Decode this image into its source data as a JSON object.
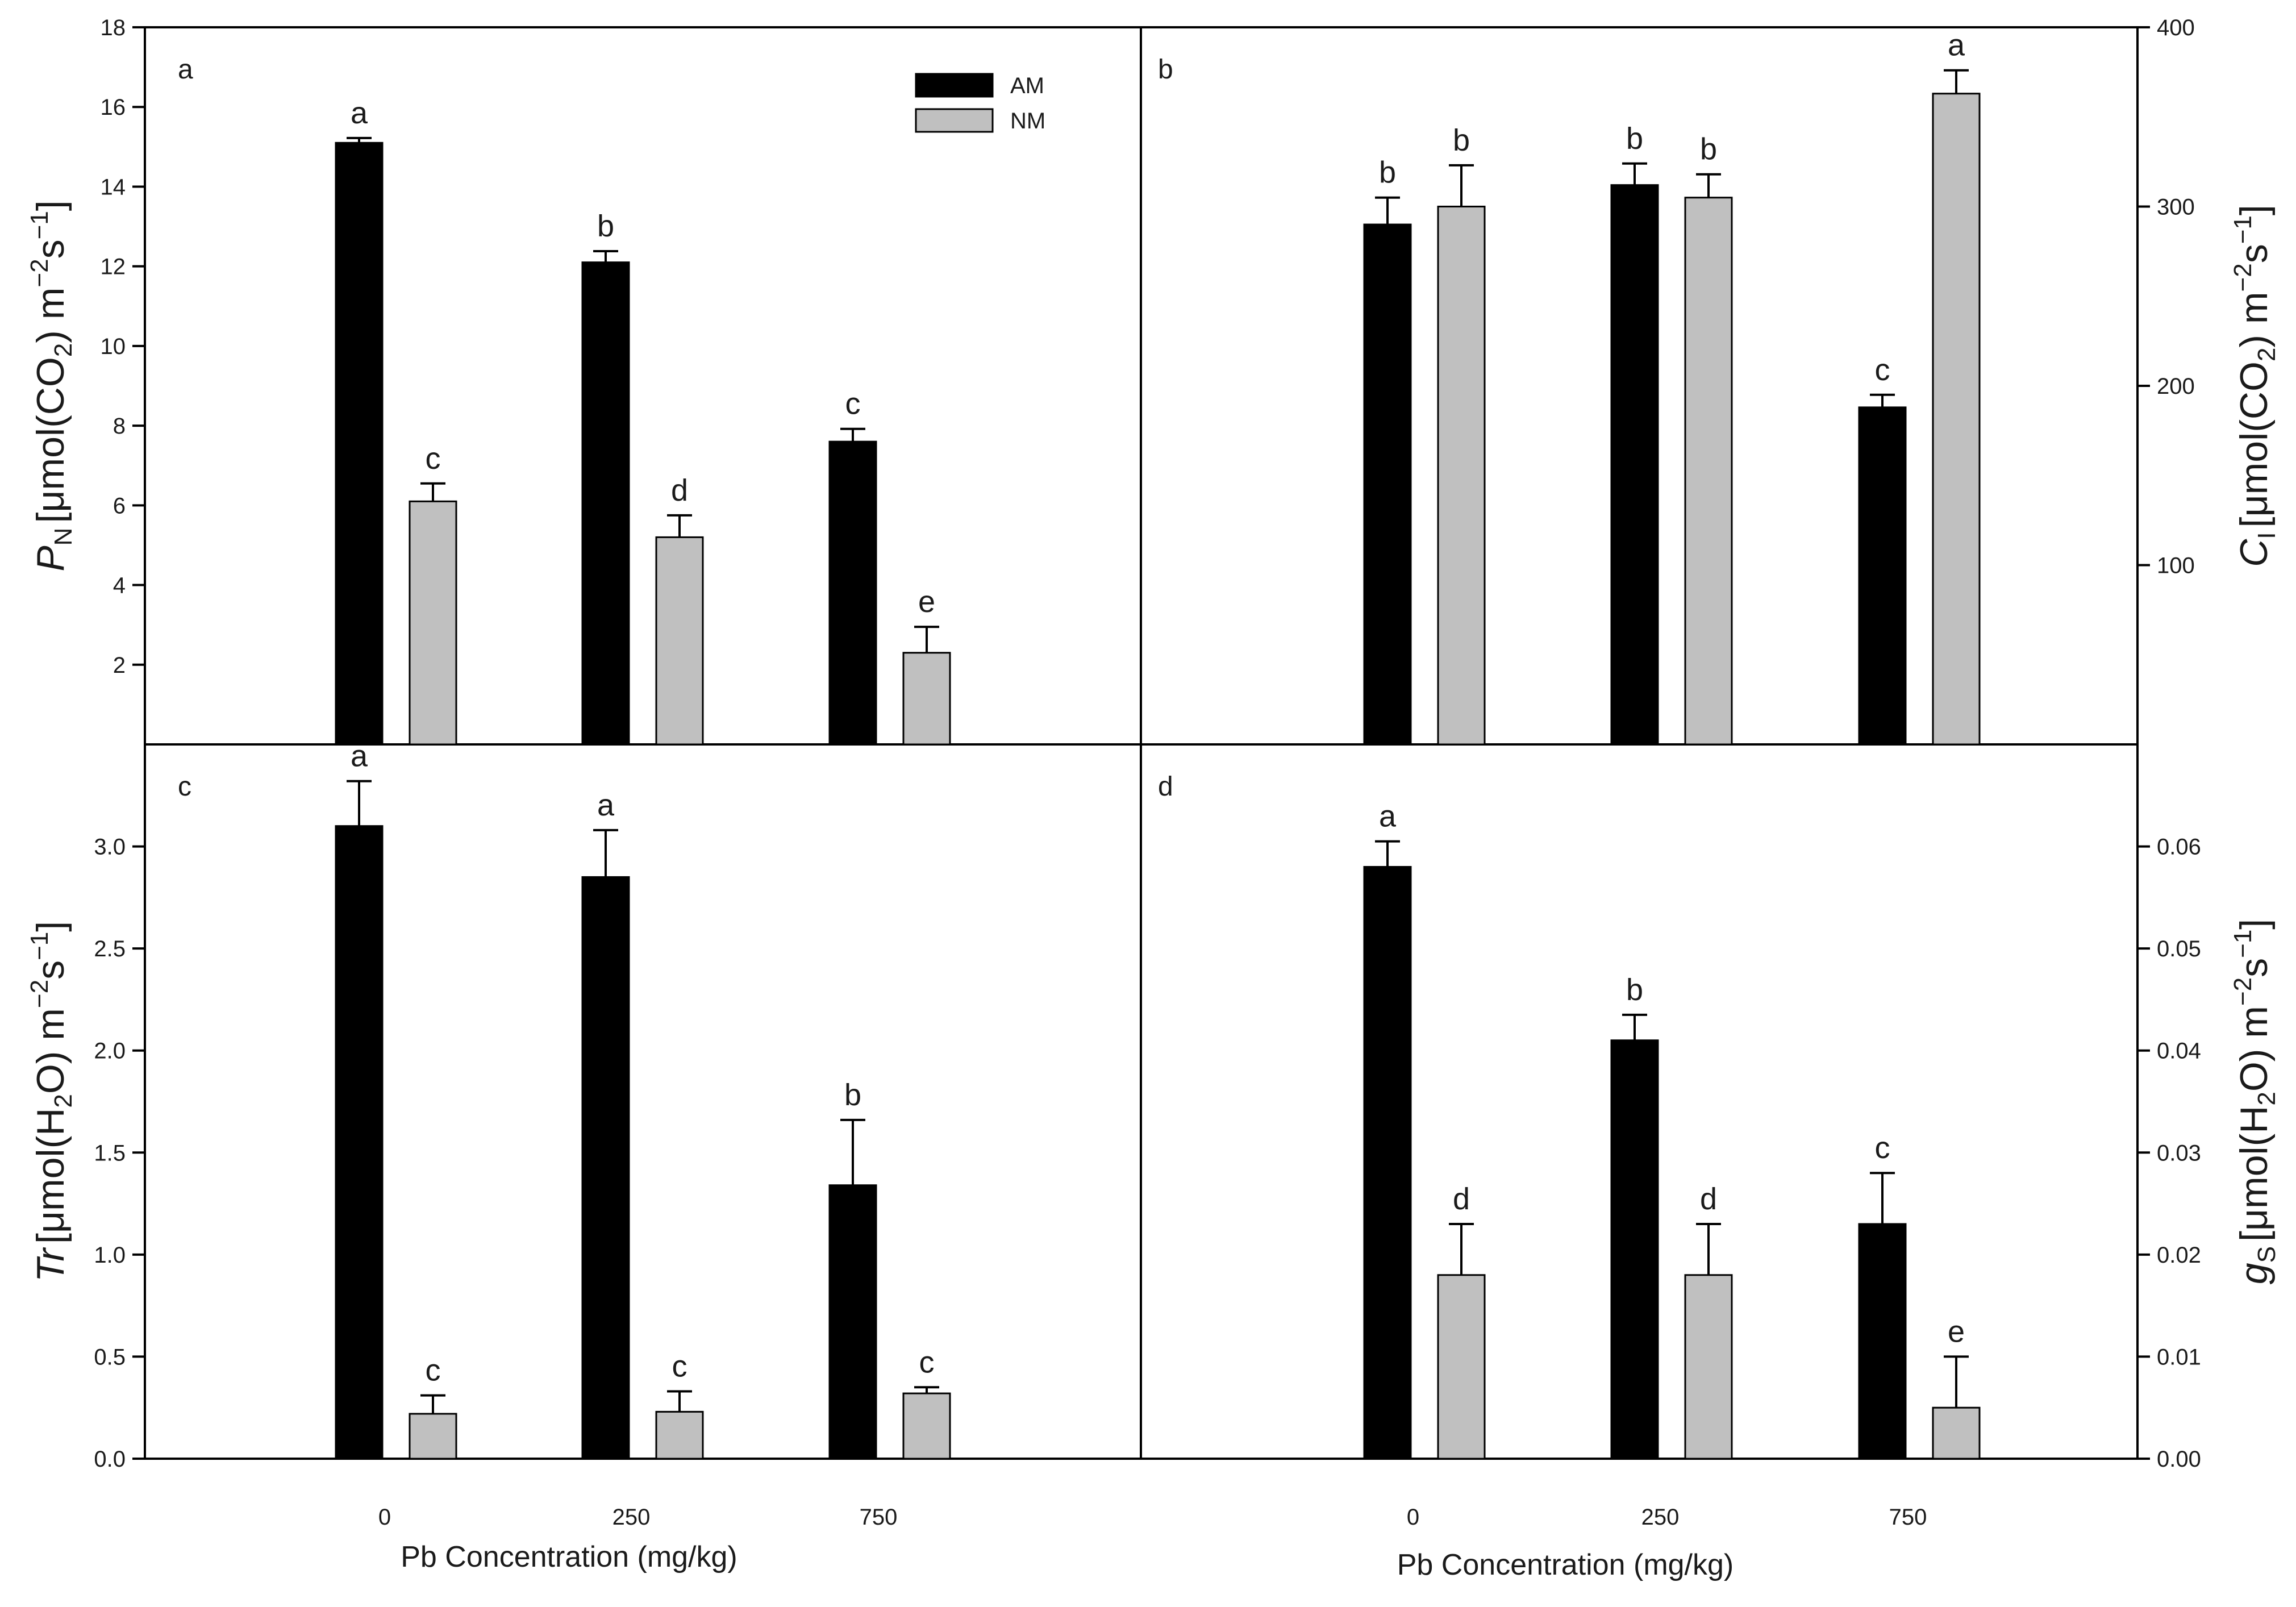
{
  "colors": {
    "am": "#000000",
    "nm": "#c0c0c0",
    "axis": "#000000"
  },
  "chart_data": [
    {
      "panel": "a",
      "type": "bar",
      "categories": [
        "0",
        "250",
        "750"
      ],
      "ylim": [
        0,
        18
      ],
      "yticks": [
        2,
        4,
        6,
        8,
        10,
        12,
        14,
        16,
        18
      ],
      "ytick_labels": [
        "2",
        "4",
        "6",
        "8",
        "10",
        "12",
        "14",
        "16",
        "18"
      ],
      "y_axis_side": "left",
      "show_x_tick_labels": false,
      "ylabel": {
        "symbol": "P",
        "sub": "N",
        "prefix": "[μmol(CO",
        "prefix_sub": "2",
        "unit": ") m",
        "exp1": "−2",
        "mid": "s",
        "exp2": "−1",
        "close": "]"
      },
      "legend": {
        "position": "top-right",
        "entries": [
          "AM",
          "NM"
        ]
      },
      "series": [
        {
          "name": "AM",
          "values": [
            15.1,
            12.1,
            7.6
          ],
          "errors": [
            0.12,
            0.28,
            0.32
          ],
          "labels": [
            "a",
            "b",
            "c"
          ]
        },
        {
          "name": "NM",
          "values": [
            6.1,
            5.2,
            2.3
          ],
          "errors": [
            0.45,
            0.55,
            0.65
          ],
          "labels": [
            "c",
            "d",
            "e"
          ]
        }
      ]
    },
    {
      "panel": "b",
      "type": "bar",
      "categories": [
        "0",
        "250",
        "750"
      ],
      "ylim": [
        0,
        400
      ],
      "yticks": [
        100,
        200,
        300,
        400
      ],
      "ytick_labels": [
        "100",
        "200",
        "300",
        "400"
      ],
      "y_axis_side": "right",
      "show_x_tick_labels": false,
      "ylabel": {
        "symbol": "C",
        "sub": "I",
        "prefix": "[μmol(CO",
        "prefix_sub": "2",
        "unit": ") m",
        "exp1": "−2",
        "mid": "s",
        "exp2": "−1",
        "close": "]"
      },
      "series": [
        {
          "name": "AM",
          "values": [
            290,
            312,
            188
          ],
          "errors": [
            15,
            12,
            7
          ],
          "labels": [
            "b",
            "b",
            "c"
          ]
        },
        {
          "name": "NM",
          "values": [
            300,
            305,
            363
          ],
          "errors": [
            23,
            13,
            13
          ],
          "labels": [
            "b",
            "b",
            "a"
          ]
        }
      ]
    },
    {
      "panel": "c",
      "type": "bar",
      "categories": [
        "0",
        "250",
        "750"
      ],
      "ylim": [
        0,
        3.5
      ],
      "yticks": [
        0,
        0.5,
        1.0,
        1.5,
        2.0,
        2.5,
        3.0
      ],
      "ytick_labels": [
        "0.0",
        "0.5",
        "1.0",
        "1.5",
        "2.0",
        "2.5",
        "3.0"
      ],
      "y_axis_side": "left",
      "show_x_tick_labels": true,
      "xlabel": "Pb Concentration (mg/kg)",
      "ylabel": {
        "symbol": "Tr",
        "sub": "",
        "prefix": "[μmol(H",
        "prefix_sub": "2",
        "unit": "O) m",
        "exp1": "−2",
        "mid": "s",
        "exp2": "−1",
        "close": "]"
      },
      "series": [
        {
          "name": "AM",
          "values": [
            3.1,
            2.85,
            1.34
          ],
          "errors": [
            0.22,
            0.23,
            0.32
          ],
          "labels": [
            "a",
            "a",
            "b"
          ]
        },
        {
          "name": "NM",
          "values": [
            0.22,
            0.23,
            0.32
          ],
          "errors": [
            0.09,
            0.1,
            0.03
          ],
          "labels": [
            "c",
            "c",
            "c"
          ]
        }
      ]
    },
    {
      "panel": "d",
      "type": "bar",
      "categories": [
        "0",
        "250",
        "750"
      ],
      "ylim": [
        0,
        0.07
      ],
      "yticks": [
        0,
        0.01,
        0.02,
        0.03,
        0.04,
        0.05,
        0.06
      ],
      "ytick_labels": [
        "0.00",
        "0.01",
        "0.02",
        "0.03",
        "0.04",
        "0.05",
        "0.06"
      ],
      "y_axis_side": "right",
      "show_x_tick_labels": true,
      "xlabel": "Pb Concentration (mg/kg)",
      "ylabel": {
        "symbol": "g",
        "sub": "S",
        "prefix": "[μmol(H",
        "prefix_sub": "2",
        "unit": "O) m",
        "exp1": "−2",
        "mid": "s",
        "exp2": "−1",
        "close": "]"
      },
      "series": [
        {
          "name": "AM",
          "values": [
            0.058,
            0.041,
            0.023
          ],
          "errors": [
            0.0025,
            0.0025,
            0.005
          ],
          "labels": [
            "a",
            "b",
            "c"
          ]
        },
        {
          "name": "NM",
          "values": [
            0.018,
            0.018,
            0.005
          ],
          "errors": [
            0.005,
            0.005,
            0.005
          ],
          "labels": [
            "d",
            "d",
            "e"
          ]
        }
      ]
    }
  ]
}
